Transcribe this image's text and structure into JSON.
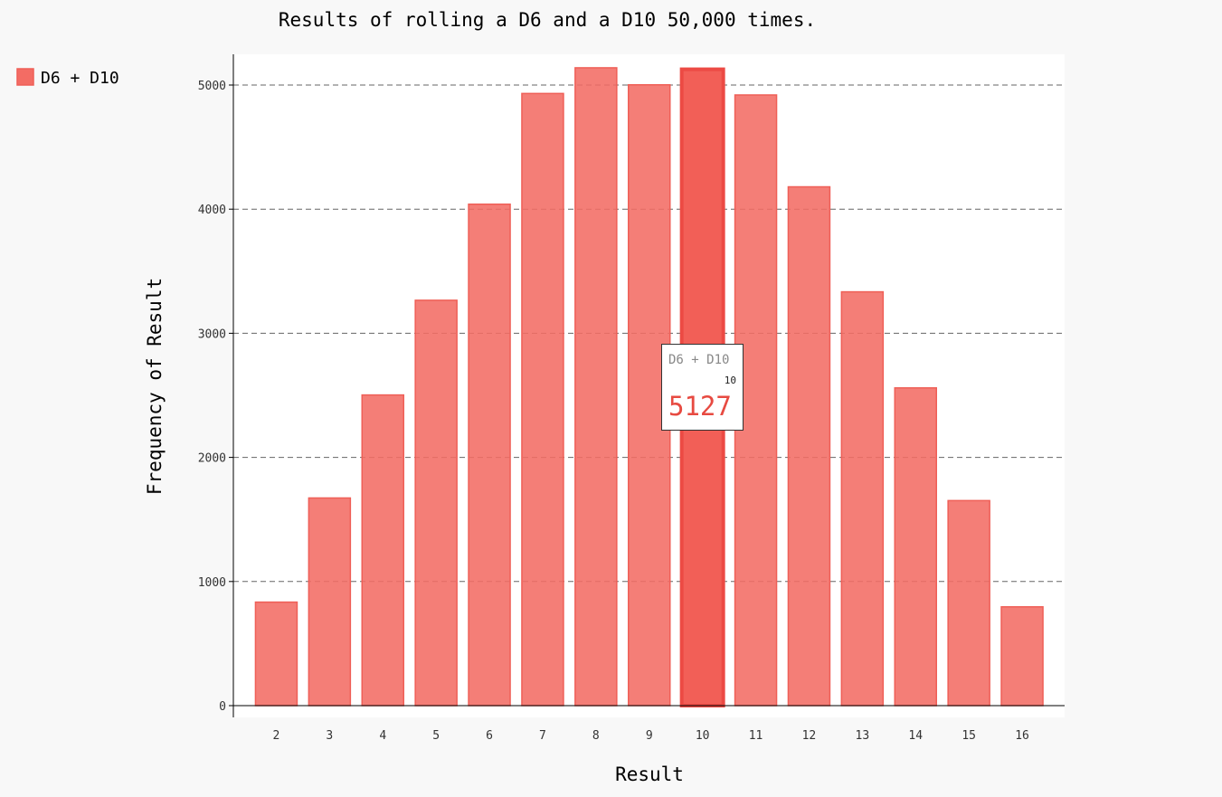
{
  "chart_data": {
    "type": "bar",
    "title": "Results of rolling a D6 and a D10 50,000 times.",
    "xlabel": "Result",
    "ylabel": "Frequency of Result",
    "categories": [
      "2",
      "3",
      "4",
      "5",
      "6",
      "7",
      "8",
      "9",
      "10",
      "11",
      "12",
      "13",
      "14",
      "15",
      "16"
    ],
    "series": [
      {
        "name": "D6 + D10",
        "values": [
          834,
          1673,
          2503,
          3266,
          4040,
          4932,
          5139,
          5002,
          5127,
          4920,
          4180,
          3334,
          2560,
          1652,
          796
        ]
      }
    ],
    "ylim": [
      0,
      5250
    ],
    "yticks": [
      "0",
      "1000",
      "2000",
      "3000",
      "4000",
      "5000"
    ],
    "grid": "horizontal dashed",
    "legend": "top-left",
    "highlighted_category": "10"
  },
  "tooltip": {
    "series": "D6 + D10",
    "x": "10",
    "value": "5127"
  },
  "colors": {
    "bar": "#f36c64",
    "bar_highlight": "#f25f57",
    "tooltip_value": "#e74a41"
  }
}
